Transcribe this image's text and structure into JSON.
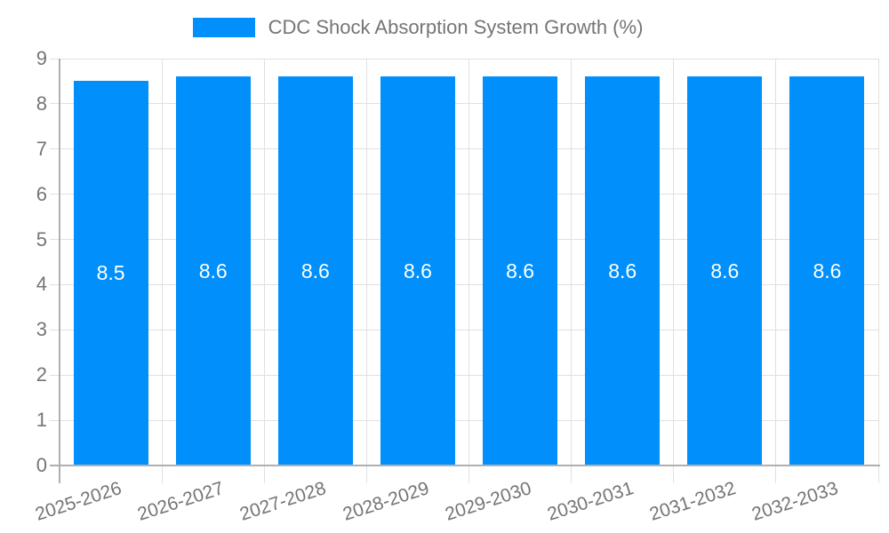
{
  "legend": {
    "label": "CDC Shock Absorption System Growth (%)"
  },
  "colors": {
    "bar": "#008FFB",
    "grid": "#e0e0e0",
    "axis": "#b0b0b0",
    "text": "#757575",
    "value_label": "#ffffff",
    "background": "#ffffff"
  },
  "chart_data": {
    "type": "bar",
    "title": "CDC Shock Absorption System Growth (%)",
    "categories": [
      "2025-2026",
      "2026-2027",
      "2027-2028",
      "2028-2029",
      "2029-2030",
      "2030-2031",
      "2031-2032",
      "2032-2033"
    ],
    "values": [
      8.5,
      8.6,
      8.6,
      8.6,
      8.6,
      8.6,
      8.6,
      8.6
    ],
    "value_labels": [
      "8.5",
      "8.6",
      "8.6",
      "8.6",
      "8.6",
      "8.6",
      "8.6",
      "8.6"
    ],
    "xlabel": "",
    "ylabel": "",
    "ylim": [
      0,
      9
    ],
    "y_tick_step": 1,
    "y_tick_labels": [
      "0",
      "1",
      "2",
      "3",
      "4",
      "5",
      "6",
      "7",
      "8",
      "9"
    ],
    "grid": true,
    "legend_position": "top",
    "bar_label_position": "middle",
    "x_label_rotation_deg": -18
  }
}
